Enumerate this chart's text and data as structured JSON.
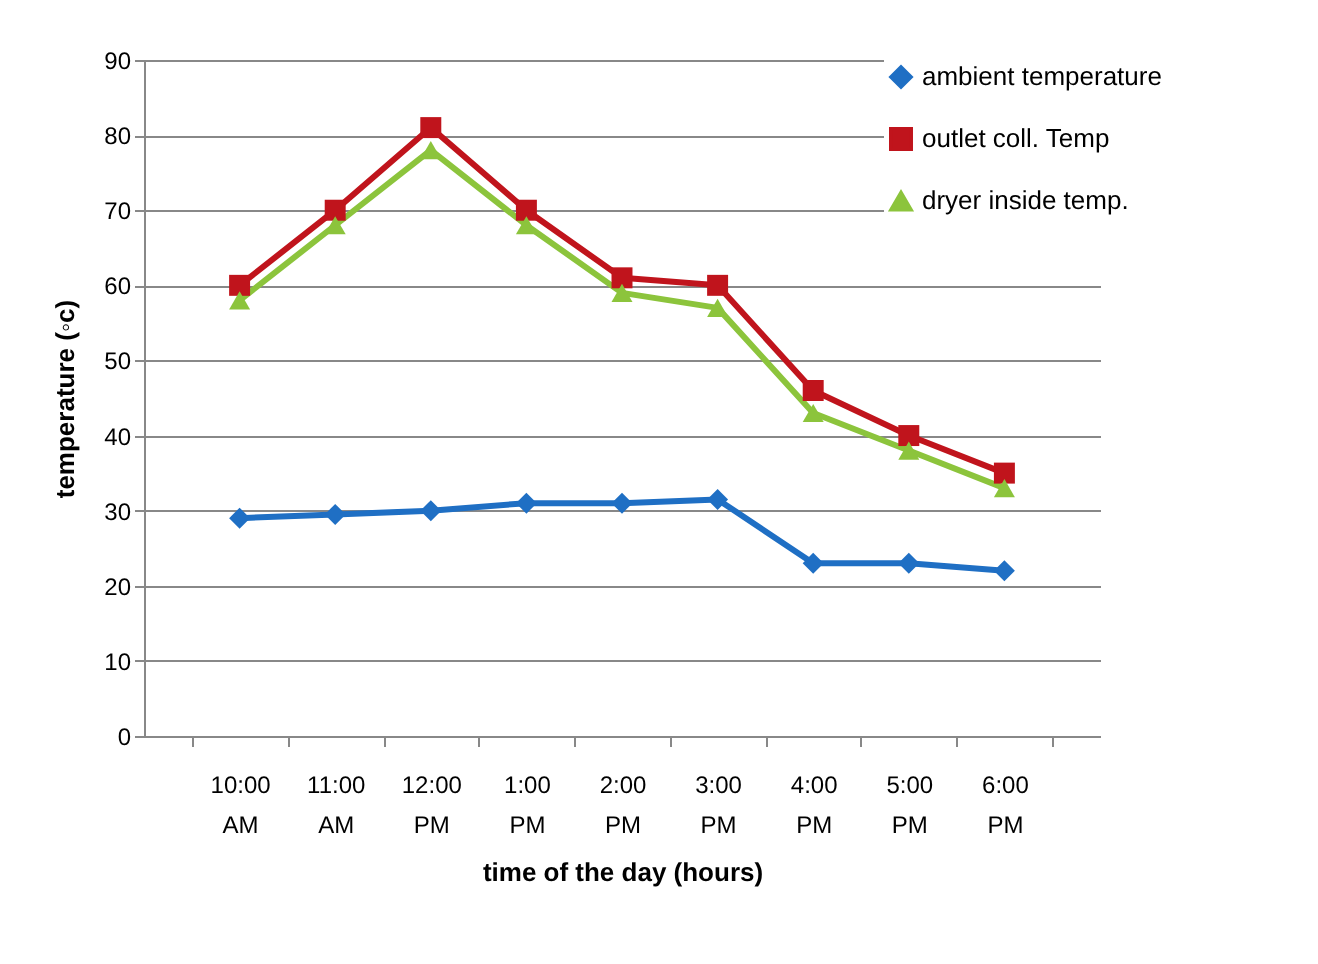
{
  "chart_data": {
    "type": "line",
    "xlabel": "time of the day (hours)",
    "ylabel": "temperature (◦c)",
    "categories": [
      "10:00 AM",
      "11:00 AM",
      "12:00 PM",
      "1:00 PM",
      "2:00 PM",
      "3:00 PM",
      "4:00 PM",
      "5:00 PM",
      "6:00 PM"
    ],
    "series": [
      {
        "name": "ambient temperature",
        "color": "#1f6fc4",
        "marker": "diamond",
        "values": [
          29,
          29.5,
          30,
          31,
          31,
          31.5,
          23,
          23,
          22
        ]
      },
      {
        "name": "outlet coll. Temp",
        "color": "#c0141c",
        "marker": "square",
        "values": [
          60,
          70,
          81,
          70,
          61,
          60,
          46,
          40,
          35
        ]
      },
      {
        "name": "dryer inside temp.",
        "color": "#8cc43c",
        "marker": "triangle",
        "values": [
          58,
          68,
          78,
          68,
          59,
          57,
          43,
          38,
          33
        ]
      }
    ],
    "ylim": [
      0,
      90
    ],
    "yticks": [
      0,
      10,
      20,
      30,
      40,
      50,
      60,
      70,
      80,
      90
    ],
    "grid": "y",
    "legend": "top right"
  }
}
